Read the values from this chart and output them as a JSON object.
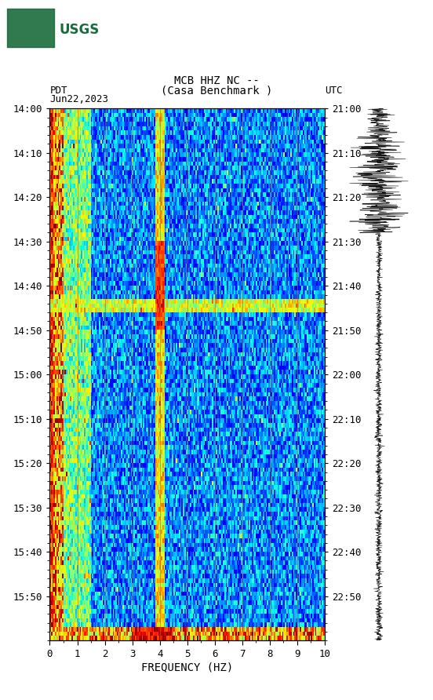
{
  "title_line1": "MCB HHZ NC --",
  "title_line2": "(Casa Benchmark )",
  "date_label": "Jun22,2023",
  "tz_left": "PDT",
  "tz_right": "UTC",
  "left_yticks": [
    "14:00",
    "14:10",
    "14:20",
    "14:30",
    "14:40",
    "14:50",
    "15:00",
    "15:10",
    "15:20",
    "15:30",
    "15:40",
    "15:50"
  ],
  "right_yticks": [
    "21:00",
    "21:10",
    "21:20",
    "21:30",
    "21:40",
    "21:50",
    "22:00",
    "22:10",
    "22:20",
    "22:30",
    "22:40",
    "22:50"
  ],
  "xticks": [
    0,
    1,
    2,
    3,
    4,
    5,
    6,
    7,
    8,
    9,
    10
  ],
  "xlabel": "FREQUENCY (HZ)",
  "freq_min": 0,
  "freq_max": 10,
  "time_steps": 120,
  "freq_steps": 200,
  "vertical_lines_freq": [
    1.0,
    2.0,
    3.0,
    4.0,
    5.0,
    6.0,
    7.0,
    8.0,
    9.0
  ],
  "background_color": "#ffffff",
  "spectrogram_bg": "#000080",
  "fig_width": 5.52,
  "fig_height": 8.92,
  "usgs_green": "#1a6b3c"
}
